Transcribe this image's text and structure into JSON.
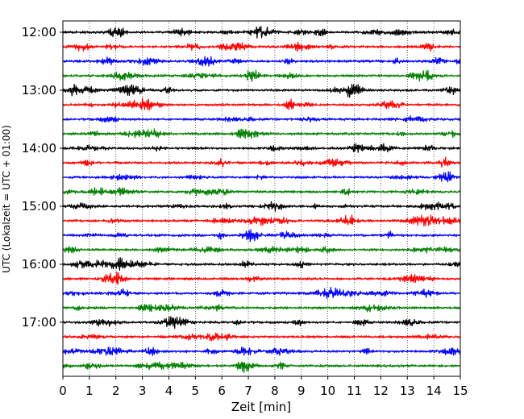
{
  "chart_data": {
    "type": "line",
    "title": "",
    "xlabel": "Zeit  [min]",
    "ylabel": "UTC (Lokalzeit = UTC + 01:00)",
    "xlim": [
      0,
      15
    ],
    "x_ticks": [
      0,
      1,
      2,
      3,
      4,
      5,
      6,
      7,
      8,
      9,
      10,
      11,
      12,
      13,
      14,
      15
    ],
    "grid": "vertical dotted",
    "y_ticks": [
      {
        "label": "12:00",
        "trace": 0
      },
      {
        "label": "13:00",
        "trace": 4
      },
      {
        "label": "14:00",
        "trace": 8
      },
      {
        "label": "15:00",
        "trace": 12
      },
      {
        "label": "16:00",
        "trace": 16
      },
      {
        "label": "17:00",
        "trace": 20
      }
    ],
    "trace_count": 24,
    "trace_minutes": 15,
    "trace_colors": [
      "#000000",
      "#ff0000",
      "#0000ff",
      "#008000"
    ],
    "start": "12:00",
    "end": "18:00"
  }
}
